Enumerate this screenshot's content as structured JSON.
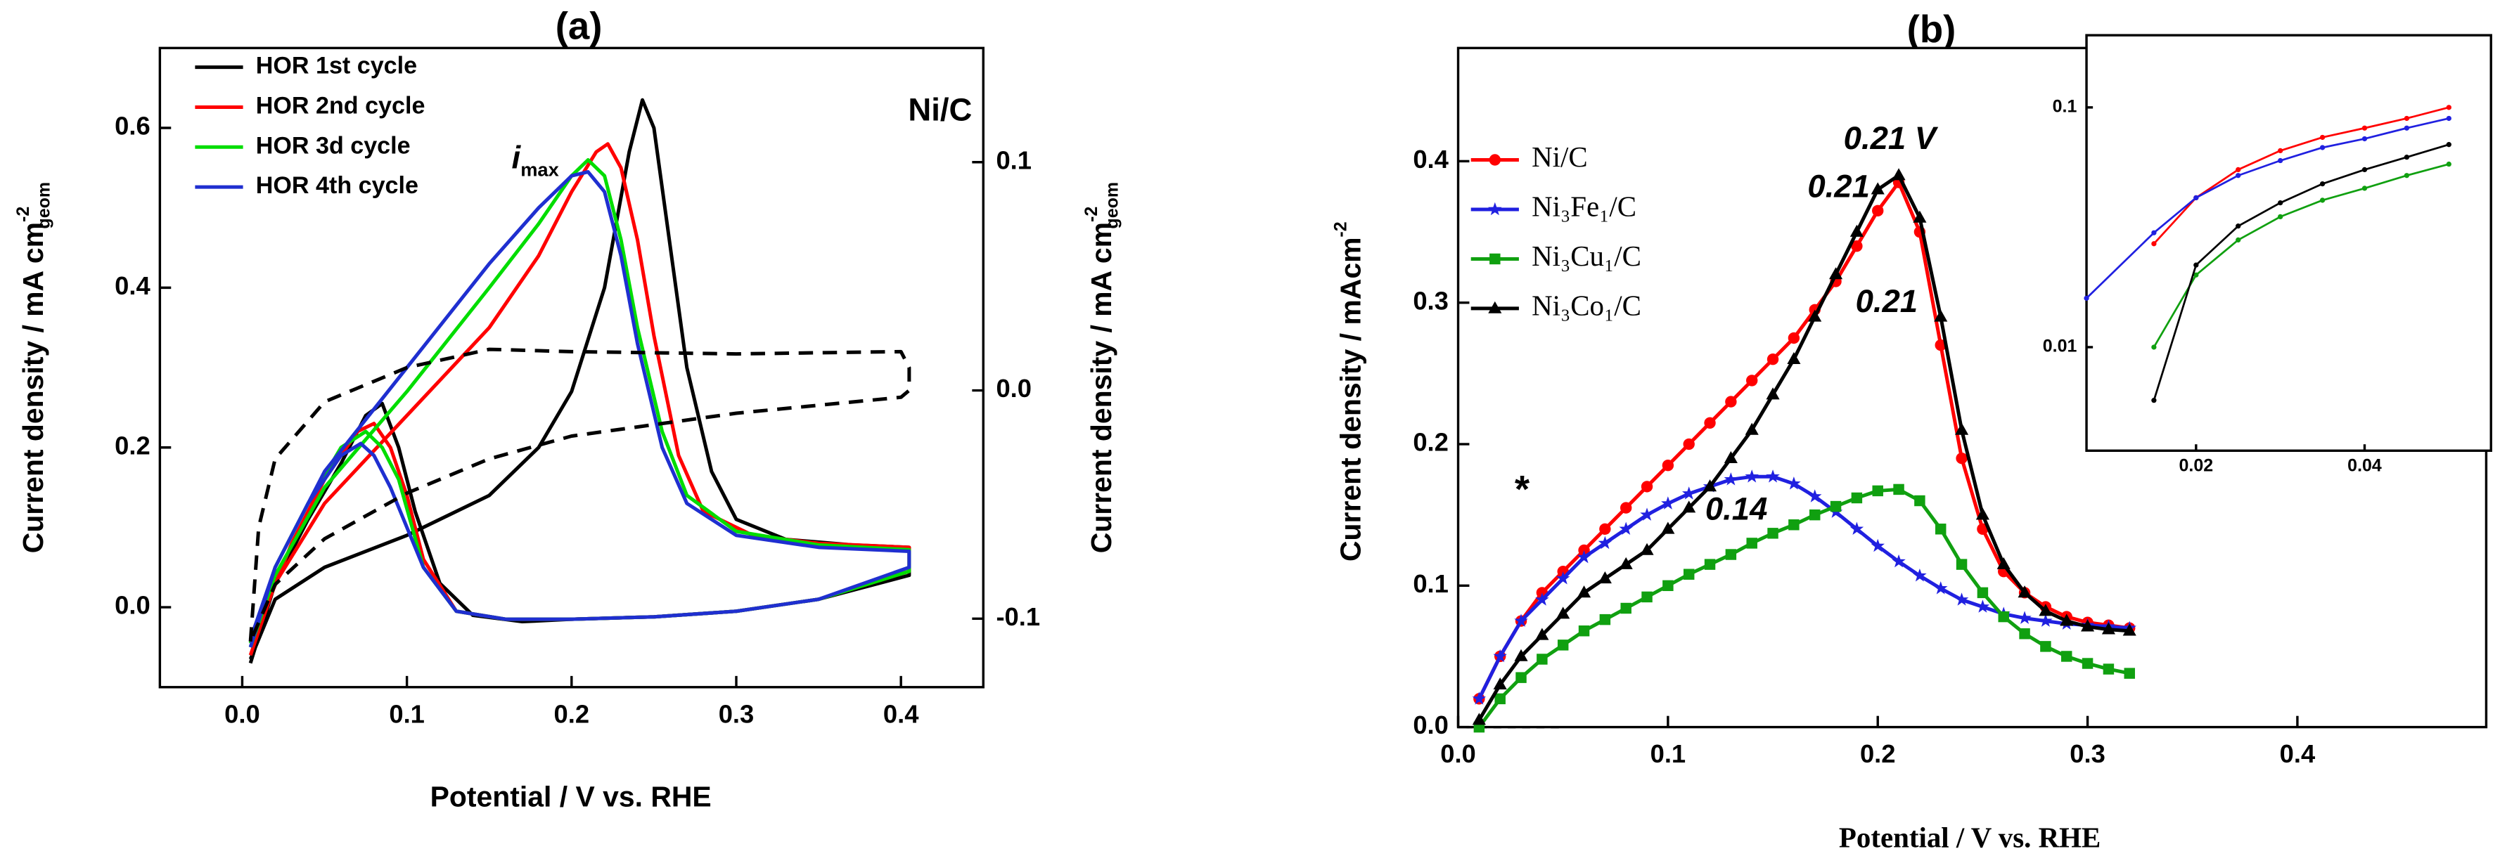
{
  "chart_data": [
    {
      "type": "line",
      "title": "(a)",
      "xlabel": "Potential / V vs. RHE",
      "ylabel": {
        "text": "Current density / mA cm",
        "sup": "-2",
        "sub": "geom"
      },
      "y2label": {
        "text": "Current density / mA cm",
        "sup": "-2",
        "sub": "geom"
      },
      "xlim": [
        -0.05,
        0.45
      ],
      "ylim": [
        -0.1,
        0.7
      ],
      "y2lim": [
        -0.13,
        0.15
      ],
      "xticks": [
        {
          "value": 0,
          "label": "0.0"
        },
        0.1,
        0.2,
        0.3,
        0.4
      ],
      "yticks": [
        {
          "value": 0,
          "label": "0.0"
        },
        0.2,
        0.4,
        0.6
      ],
      "y2ticks": [
        -0.1,
        {
          "value": 0,
          "label": "0.0"
        },
        0.1
      ],
      "legend": "upper left",
      "annotations": [
        {
          "text": "Ni/C",
          "color": "#ff0000"
        },
        {
          "text": "i",
          "sub": "max",
          "color": "#000000"
        }
      ],
      "series": [
        {
          "name": "HOR 1st cycle",
          "color": "#000000",
          "x": [
            0.005,
            0.02,
            0.05,
            0.1,
            0.15,
            0.18,
            0.2,
            0.22,
            0.235,
            0.243,
            0.25,
            0.26,
            0.27,
            0.285,
            0.3,
            0.33,
            0.37,
            0.405,
            0.405,
            0.35,
            0.3,
            0.25,
            0.2,
            0.17,
            0.14,
            0.12,
            0.105,
            0.095,
            0.085,
            0.075,
            0.06,
            0.04,
            0.02,
            0.005
          ],
          "values": [
            -0.065,
            0.01,
            0.05,
            0.09,
            0.14,
            0.2,
            0.27,
            0.4,
            0.57,
            0.635,
            0.6,
            0.45,
            0.3,
            0.17,
            0.11,
            0.085,
            0.078,
            0.075,
            0.04,
            0.01,
            -0.005,
            -0.012,
            -0.015,
            -0.018,
            -0.01,
            0.03,
            0.12,
            0.2,
            0.255,
            0.24,
            0.18,
            0.11,
            0.03,
            -0.07
          ]
        },
        {
          "name": "HOR 2nd cycle",
          "color": "#ff0000",
          "x": [
            0.005,
            0.02,
            0.05,
            0.1,
            0.15,
            0.18,
            0.2,
            0.215,
            0.222,
            0.23,
            0.24,
            0.25,
            0.265,
            0.28,
            0.31,
            0.35,
            0.405,
            0.405,
            0.35,
            0.3,
            0.25,
            0.2,
            0.16,
            0.13,
            0.11,
            0.1,
            0.09,
            0.08,
            0.07,
            0.05,
            0.03,
            0.005
          ],
          "values": [
            -0.06,
            0.03,
            0.13,
            0.24,
            0.35,
            0.44,
            0.52,
            0.57,
            0.58,
            0.55,
            0.46,
            0.34,
            0.19,
            0.12,
            0.09,
            0.08,
            0.075,
            0.045,
            0.01,
            -0.005,
            -0.012,
            -0.015,
            -0.015,
            -0.005,
            0.06,
            0.14,
            0.2,
            0.23,
            0.22,
            0.16,
            0.08,
            -0.05
          ]
        },
        {
          "name": "HOR 3d cycle",
          "color": "#00dd00",
          "x": [
            0.005,
            0.02,
            0.05,
            0.1,
            0.15,
            0.18,
            0.2,
            0.21,
            0.22,
            0.23,
            0.24,
            0.255,
            0.27,
            0.3,
            0.35,
            0.405,
            0.405,
            0.35,
            0.3,
            0.25,
            0.2,
            0.16,
            0.13,
            0.11,
            0.095,
            0.085,
            0.075,
            0.06,
            0.04,
            0.02,
            0.005
          ],
          "values": [
            -0.05,
            0.04,
            0.15,
            0.27,
            0.4,
            0.48,
            0.54,
            0.56,
            0.54,
            0.46,
            0.35,
            0.22,
            0.14,
            0.095,
            0.078,
            0.072,
            0.045,
            0.01,
            -0.005,
            -0.012,
            -0.015,
            -0.015,
            -0.005,
            0.05,
            0.16,
            0.2,
            0.22,
            0.2,
            0.13,
            0.05,
            -0.045
          ]
        },
        {
          "name": "HOR 4th cycle",
          "color": "#1f2fd0",
          "x": [
            0.005,
            0.02,
            0.05,
            0.1,
            0.15,
            0.18,
            0.2,
            0.21,
            0.22,
            0.23,
            0.24,
            0.255,
            0.27,
            0.3,
            0.35,
            0.405,
            0.405,
            0.35,
            0.3,
            0.25,
            0.2,
            0.16,
            0.13,
            0.11,
            0.09,
            0.08,
            0.072,
            0.06,
            0.04,
            0.02,
            0.005
          ],
          "values": [
            -0.05,
            0.05,
            0.17,
            0.3,
            0.43,
            0.5,
            0.54,
            0.545,
            0.52,
            0.44,
            0.33,
            0.2,
            0.13,
            0.09,
            0.075,
            0.07,
            0.05,
            0.01,
            -0.005,
            -0.012,
            -0.015,
            -0.015,
            -0.005,
            0.05,
            0.15,
            0.19,
            0.205,
            0.19,
            0.13,
            0.05,
            -0.04
          ]
        },
        {
          "color": "#000000",
          "dash": true,
          "axis": "y2",
          "x": [
            0.005,
            0.01,
            0.02,
            0.05,
            0.1,
            0.15,
            0.2,
            0.3,
            0.4,
            0.405,
            0.405,
            0.4,
            0.3,
            0.2,
            0.15,
            0.1,
            0.05,
            0.02,
            0.005
          ],
          "values": [
            -0.11,
            -0.06,
            -0.03,
            -0.005,
            0.01,
            0.018,
            0.017,
            0.016,
            0.017,
            0.01,
            0.0,
            -0.003,
            -0.01,
            -0.02,
            -0.03,
            -0.045,
            -0.065,
            -0.085,
            -0.11
          ]
        }
      ]
    },
    {
      "type": "line",
      "title": "(b)",
      "xlabel": "Potential / V vs. RHE",
      "ylabel": {
        "text": "Current density / mAcm",
        "sup": "-2"
      },
      "xlim": [
        0,
        0.49
      ],
      "ylim": [
        0,
        0.48
      ],
      "xticks": [
        {
          "value": 0,
          "label": "0.0"
        },
        0.1,
        0.2,
        0.3,
        0.4
      ],
      "yticks": [
        {
          "value": 0,
          "label": "0.0"
        },
        0.1,
        0.2,
        0.3,
        0.4
      ],
      "legend": "upper left",
      "annotations": [
        {
          "text": "0.21 V",
          "color": "#000000"
        },
        {
          "text": "0.21",
          "color": "#ff0000"
        },
        {
          "text": "0.14",
          "color": "#2020e0"
        },
        {
          "text": "0.21",
          "color": "#10a010"
        },
        {
          "text": "*",
          "color": "#ff0000"
        }
      ],
      "x": [
        0.01,
        0.02,
        0.03,
        0.04,
        0.05,
        0.06,
        0.07,
        0.08,
        0.09,
        0.1,
        0.11,
        0.12,
        0.13,
        0.14,
        0.15,
        0.16,
        0.17,
        0.18,
        0.19,
        0.2,
        0.21,
        0.22,
        0.23,
        0.24,
        0.25,
        0.26,
        0.27,
        0.28,
        0.29,
        0.3,
        0.31,
        0.32
      ],
      "series": [
        {
          "name": "Ni/C",
          "color": "#ff0000",
          "marker": "circle",
          "values": [
            0.02,
            0.05,
            0.075,
            0.095,
            0.11,
            0.125,
            0.14,
            0.155,
            0.17,
            0.185,
            0.2,
            0.215,
            0.23,
            0.245,
            0.26,
            0.275,
            0.295,
            0.315,
            0.34,
            0.365,
            0.385,
            0.35,
            0.27,
            0.19,
            0.14,
            0.11,
            0.095,
            0.085,
            0.078,
            0.074,
            0.072,
            0.07
          ]
        },
        {
          "name": "Ni₃Fe₁/C",
          "color": "#2020e0",
          "marker": "star",
          "values": [
            0.02,
            0.05,
            0.075,
            0.09,
            0.105,
            0.12,
            0.13,
            0.14,
            0.15,
            0.158,
            0.165,
            0.17,
            0.175,
            0.177,
            0.177,
            0.172,
            0.163,
            0.152,
            0.14,
            0.128,
            0.117,
            0.107,
            0.098,
            0.09,
            0.085,
            0.08,
            0.077,
            0.075,
            0.073,
            0.072,
            0.071,
            0.07
          ]
        },
        {
          "name": "Ni₃Cu₁/C",
          "color": "#10a010",
          "marker": "square",
          "values": [
            0.0,
            0.02,
            0.035,
            0.048,
            0.058,
            0.068,
            0.076,
            0.084,
            0.092,
            0.1,
            0.108,
            0.115,
            0.122,
            0.13,
            0.137,
            0.143,
            0.15,
            0.156,
            0.162,
            0.167,
            0.168,
            0.16,
            0.14,
            0.115,
            0.095,
            0.078,
            0.066,
            0.057,
            0.05,
            0.045,
            0.041,
            0.038
          ]
        },
        {
          "name": "Ni₃Co₁/C",
          "color": "#000000",
          "marker": "triangle",
          "values": [
            0.005,
            0.03,
            0.05,
            0.065,
            0.08,
            0.095,
            0.105,
            0.115,
            0.125,
            0.14,
            0.155,
            0.17,
            0.19,
            0.21,
            0.235,
            0.26,
            0.29,
            0.32,
            0.35,
            0.38,
            0.39,
            0.36,
            0.29,
            0.21,
            0.15,
            0.115,
            0.095,
            0.082,
            0.075,
            0.071,
            0.069,
            0.068
          ]
        }
      ]
    },
    {
      "type": "line",
      "log_y": true,
      "xlim": [
        0.007,
        0.055
      ],
      "ylim": [
        0.0037,
        0.2
      ],
      "xticks": [
        0.02,
        0.04
      ],
      "yticks": [
        0.01,
        0.1
      ],
      "series": [
        {
          "color": "#ff0000",
          "marker": "dot",
          "x": [
            0.015,
            0.02,
            0.025,
            0.03,
            0.035,
            0.04,
            0.045,
            0.05
          ],
          "values": [
            0.027,
            0.042,
            0.055,
            0.066,
            0.075,
            0.082,
            0.09,
            0.1
          ]
        },
        {
          "color": "#2020e0",
          "marker": "dot",
          "x": [
            0.007,
            0.015,
            0.02,
            0.025,
            0.03,
            0.035,
            0.04,
            0.045,
            0.05
          ],
          "values": [
            0.016,
            0.03,
            0.042,
            0.052,
            0.06,
            0.068,
            0.074,
            0.082,
            0.09
          ]
        },
        {
          "color": "#10a010",
          "marker": "dot",
          "x": [
            0.015,
            0.02,
            0.025,
            0.03,
            0.035,
            0.04,
            0.045,
            0.05
          ],
          "values": [
            0.01,
            0.02,
            0.028,
            0.035,
            0.041,
            0.046,
            0.052,
            0.058
          ]
        },
        {
          "color": "#000000",
          "marker": "dot",
          "x": [
            0.015,
            0.02,
            0.025,
            0.03,
            0.035,
            0.04,
            0.045,
            0.05
          ],
          "values": [
            0.006,
            0.022,
            0.032,
            0.04,
            0.048,
            0.055,
            0.062,
            0.07
          ]
        }
      ]
    }
  ]
}
